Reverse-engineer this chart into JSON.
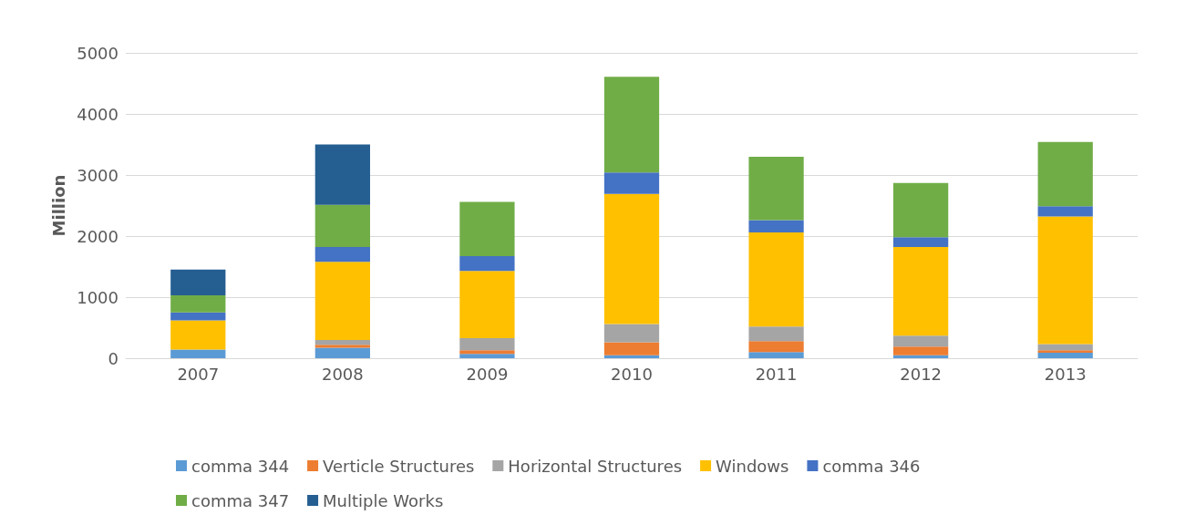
{
  "chart_data": {
    "type": "bar",
    "stacked": true,
    "ylabel": "Million",
    "categories": [
      "2007",
      "2008",
      "2009",
      "2010",
      "2011",
      "2012",
      "2013"
    ],
    "series": [
      {
        "name": "comma 344",
        "color": "#5b9bd5",
        "values": [
          140,
          170,
          70,
          50,
          100,
          50,
          90
        ]
      },
      {
        "name": "Verticle Structures",
        "color": "#ed7d31",
        "values": [
          0,
          50,
          60,
          210,
          180,
          140,
          40
        ]
      },
      {
        "name": "Horizontal Structures",
        "color": "#a5a5a5",
        "values": [
          0,
          80,
          200,
          300,
          240,
          180,
          100
        ]
      },
      {
        "name": "Windows",
        "color": "#ffc000",
        "values": [
          480,
          1280,
          1100,
          2130,
          1540,
          1450,
          2090
        ]
      },
      {
        "name": "comma 346",
        "color": "#4472c4",
        "values": [
          130,
          240,
          240,
          350,
          200,
          160,
          170
        ]
      },
      {
        "name": "comma 347",
        "color": "#70ad47",
        "values": [
          280,
          690,
          890,
          1570,
          1040,
          890,
          1050
        ]
      },
      {
        "name": "Multiple Works",
        "color": "#255e91",
        "values": [
          420,
          990,
          null,
          null,
          null,
          null,
          null
        ]
      }
    ],
    "ylim": [
      0,
      5000
    ],
    "yticks": [
      0,
      1000,
      2000,
      3000,
      4000,
      5000
    ],
    "grid": "y",
    "legend": "bottom"
  }
}
